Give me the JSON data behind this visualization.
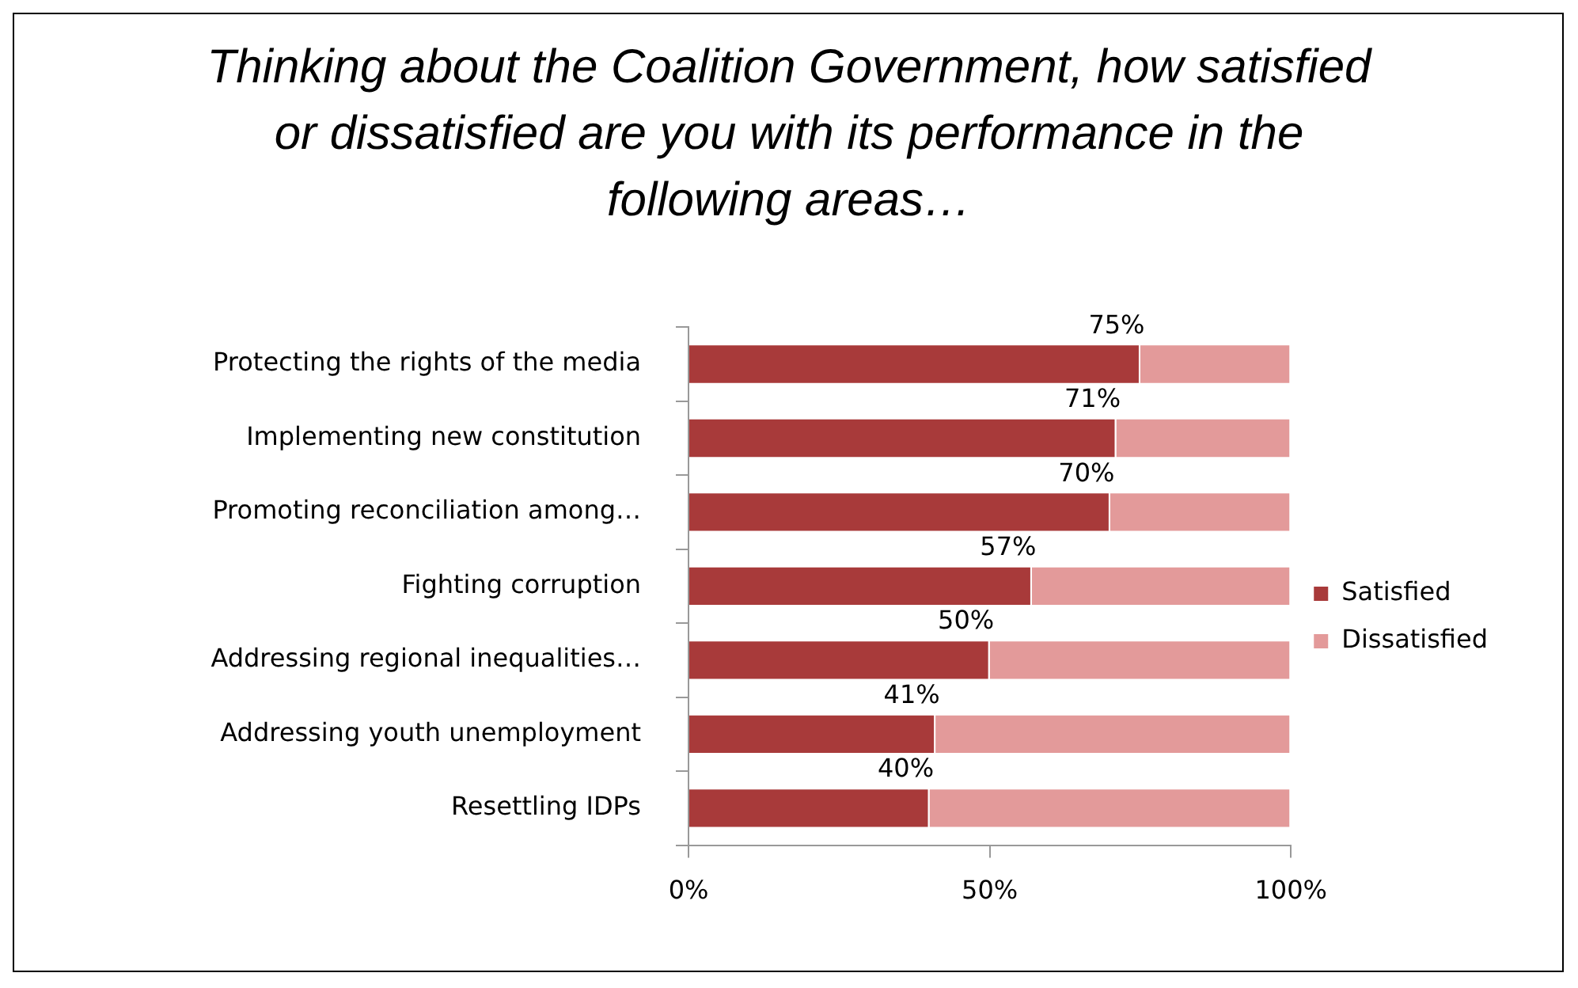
{
  "chart_data": {
    "type": "bar",
    "orientation": "horizontal",
    "stacked": true,
    "title": "Thinking about the Coalition Government, how satisfied or dissatisfied are you with its performance in the following areas…",
    "categories": [
      "Protecting the rights of the media",
      "Implementing new constitution",
      "Promoting reconciliation among…",
      "Fighting corruption",
      "Addressing regional inequalities…",
      "Addressing youth unemployment",
      "Resettling IDPs"
    ],
    "series": [
      {
        "name": "Satisfied",
        "color": "#a83a3a",
        "values": [
          75,
          71,
          70,
          57,
          50,
          41,
          40
        ],
        "value_labels": [
          "75%",
          "71%",
          "70%",
          "57%",
          "50%",
          "41%",
          "40%"
        ]
      },
      {
        "name": "Dissatisfied",
        "color": "#e39a9a",
        "values": [
          25,
          29,
          30,
          43,
          50,
          59,
          60
        ]
      }
    ],
    "xlim": [
      0,
      100
    ],
    "xticks": [
      {
        "value": 0,
        "label": "0%"
      },
      {
        "value": 50,
        "label": "50%"
      },
      {
        "value": 100,
        "label": "100%"
      }
    ],
    "grid": false,
    "legend": "right"
  }
}
